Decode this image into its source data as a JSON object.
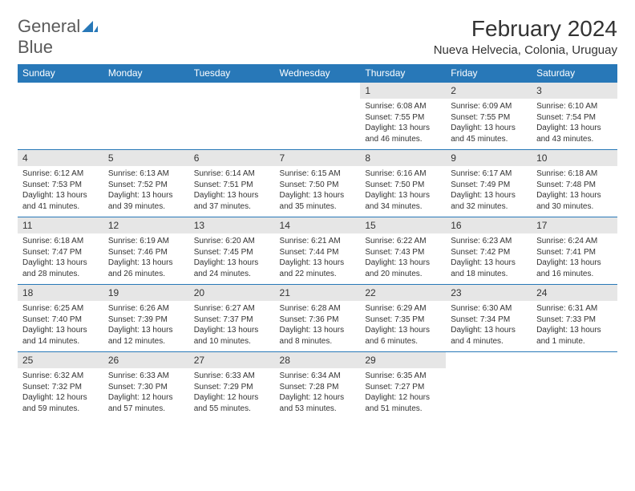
{
  "logo": {
    "text1": "General",
    "text2": "Blue",
    "text1_color": "#5a5a5a",
    "text2_color": "#2878b8",
    "icon_color": "#2878b8"
  },
  "title": "February 2024",
  "location": "Nueva Helvecia, Colonia, Uruguay",
  "colors": {
    "header_bg": "#2878b8",
    "header_text": "#ffffff",
    "date_bg": "#e6e6e6",
    "border": "#2878b8",
    "text": "#333333",
    "background": "#ffffff"
  },
  "fonts": {
    "title_size": 28,
    "location_size": 15,
    "header_size": 12,
    "date_size": 12,
    "detail_size": 10
  },
  "day_headers": [
    "Sunday",
    "Monday",
    "Tuesday",
    "Wednesday",
    "Thursday",
    "Friday",
    "Saturday"
  ],
  "weeks": [
    {
      "dates": [
        "",
        "",
        "",
        "",
        "1",
        "2",
        "3"
      ],
      "details": [
        {
          "sunrise": "",
          "sunset": "",
          "daylight": ""
        },
        {
          "sunrise": "",
          "sunset": "",
          "daylight": ""
        },
        {
          "sunrise": "",
          "sunset": "",
          "daylight": ""
        },
        {
          "sunrise": "",
          "sunset": "",
          "daylight": ""
        },
        {
          "sunrise": "Sunrise: 6:08 AM",
          "sunset": "Sunset: 7:55 PM",
          "daylight": "Daylight: 13 hours and 46 minutes."
        },
        {
          "sunrise": "Sunrise: 6:09 AM",
          "sunset": "Sunset: 7:55 PM",
          "daylight": "Daylight: 13 hours and 45 minutes."
        },
        {
          "sunrise": "Sunrise: 6:10 AM",
          "sunset": "Sunset: 7:54 PM",
          "daylight": "Daylight: 13 hours and 43 minutes."
        }
      ]
    },
    {
      "dates": [
        "4",
        "5",
        "6",
        "7",
        "8",
        "9",
        "10"
      ],
      "details": [
        {
          "sunrise": "Sunrise: 6:12 AM",
          "sunset": "Sunset: 7:53 PM",
          "daylight": "Daylight: 13 hours and 41 minutes."
        },
        {
          "sunrise": "Sunrise: 6:13 AM",
          "sunset": "Sunset: 7:52 PM",
          "daylight": "Daylight: 13 hours and 39 minutes."
        },
        {
          "sunrise": "Sunrise: 6:14 AM",
          "sunset": "Sunset: 7:51 PM",
          "daylight": "Daylight: 13 hours and 37 minutes."
        },
        {
          "sunrise": "Sunrise: 6:15 AM",
          "sunset": "Sunset: 7:50 PM",
          "daylight": "Daylight: 13 hours and 35 minutes."
        },
        {
          "sunrise": "Sunrise: 6:16 AM",
          "sunset": "Sunset: 7:50 PM",
          "daylight": "Daylight: 13 hours and 34 minutes."
        },
        {
          "sunrise": "Sunrise: 6:17 AM",
          "sunset": "Sunset: 7:49 PM",
          "daylight": "Daylight: 13 hours and 32 minutes."
        },
        {
          "sunrise": "Sunrise: 6:18 AM",
          "sunset": "Sunset: 7:48 PM",
          "daylight": "Daylight: 13 hours and 30 minutes."
        }
      ]
    },
    {
      "dates": [
        "11",
        "12",
        "13",
        "14",
        "15",
        "16",
        "17"
      ],
      "details": [
        {
          "sunrise": "Sunrise: 6:18 AM",
          "sunset": "Sunset: 7:47 PM",
          "daylight": "Daylight: 13 hours and 28 minutes."
        },
        {
          "sunrise": "Sunrise: 6:19 AM",
          "sunset": "Sunset: 7:46 PM",
          "daylight": "Daylight: 13 hours and 26 minutes."
        },
        {
          "sunrise": "Sunrise: 6:20 AM",
          "sunset": "Sunset: 7:45 PM",
          "daylight": "Daylight: 13 hours and 24 minutes."
        },
        {
          "sunrise": "Sunrise: 6:21 AM",
          "sunset": "Sunset: 7:44 PM",
          "daylight": "Daylight: 13 hours and 22 minutes."
        },
        {
          "sunrise": "Sunrise: 6:22 AM",
          "sunset": "Sunset: 7:43 PM",
          "daylight": "Daylight: 13 hours and 20 minutes."
        },
        {
          "sunrise": "Sunrise: 6:23 AM",
          "sunset": "Sunset: 7:42 PM",
          "daylight": "Daylight: 13 hours and 18 minutes."
        },
        {
          "sunrise": "Sunrise: 6:24 AM",
          "sunset": "Sunset: 7:41 PM",
          "daylight": "Daylight: 13 hours and 16 minutes."
        }
      ]
    },
    {
      "dates": [
        "18",
        "19",
        "20",
        "21",
        "22",
        "23",
        "24"
      ],
      "details": [
        {
          "sunrise": "Sunrise: 6:25 AM",
          "sunset": "Sunset: 7:40 PM",
          "daylight": "Daylight: 13 hours and 14 minutes."
        },
        {
          "sunrise": "Sunrise: 6:26 AM",
          "sunset": "Sunset: 7:39 PM",
          "daylight": "Daylight: 13 hours and 12 minutes."
        },
        {
          "sunrise": "Sunrise: 6:27 AM",
          "sunset": "Sunset: 7:37 PM",
          "daylight": "Daylight: 13 hours and 10 minutes."
        },
        {
          "sunrise": "Sunrise: 6:28 AM",
          "sunset": "Sunset: 7:36 PM",
          "daylight": "Daylight: 13 hours and 8 minutes."
        },
        {
          "sunrise": "Sunrise: 6:29 AM",
          "sunset": "Sunset: 7:35 PM",
          "daylight": "Daylight: 13 hours and 6 minutes."
        },
        {
          "sunrise": "Sunrise: 6:30 AM",
          "sunset": "Sunset: 7:34 PM",
          "daylight": "Daylight: 13 hours and 4 minutes."
        },
        {
          "sunrise": "Sunrise: 6:31 AM",
          "sunset": "Sunset: 7:33 PM",
          "daylight": "Daylight: 13 hours and 1 minute."
        }
      ]
    },
    {
      "dates": [
        "25",
        "26",
        "27",
        "28",
        "29",
        "",
        ""
      ],
      "details": [
        {
          "sunrise": "Sunrise: 6:32 AM",
          "sunset": "Sunset: 7:32 PM",
          "daylight": "Daylight: 12 hours and 59 minutes."
        },
        {
          "sunrise": "Sunrise: 6:33 AM",
          "sunset": "Sunset: 7:30 PM",
          "daylight": "Daylight: 12 hours and 57 minutes."
        },
        {
          "sunrise": "Sunrise: 6:33 AM",
          "sunset": "Sunset: 7:29 PM",
          "daylight": "Daylight: 12 hours and 55 minutes."
        },
        {
          "sunrise": "Sunrise: 6:34 AM",
          "sunset": "Sunset: 7:28 PM",
          "daylight": "Daylight: 12 hours and 53 minutes."
        },
        {
          "sunrise": "Sunrise: 6:35 AM",
          "sunset": "Sunset: 7:27 PM",
          "daylight": "Daylight: 12 hours and 51 minutes."
        },
        {
          "sunrise": "",
          "sunset": "",
          "daylight": ""
        },
        {
          "sunrise": "",
          "sunset": "",
          "daylight": ""
        }
      ]
    }
  ]
}
